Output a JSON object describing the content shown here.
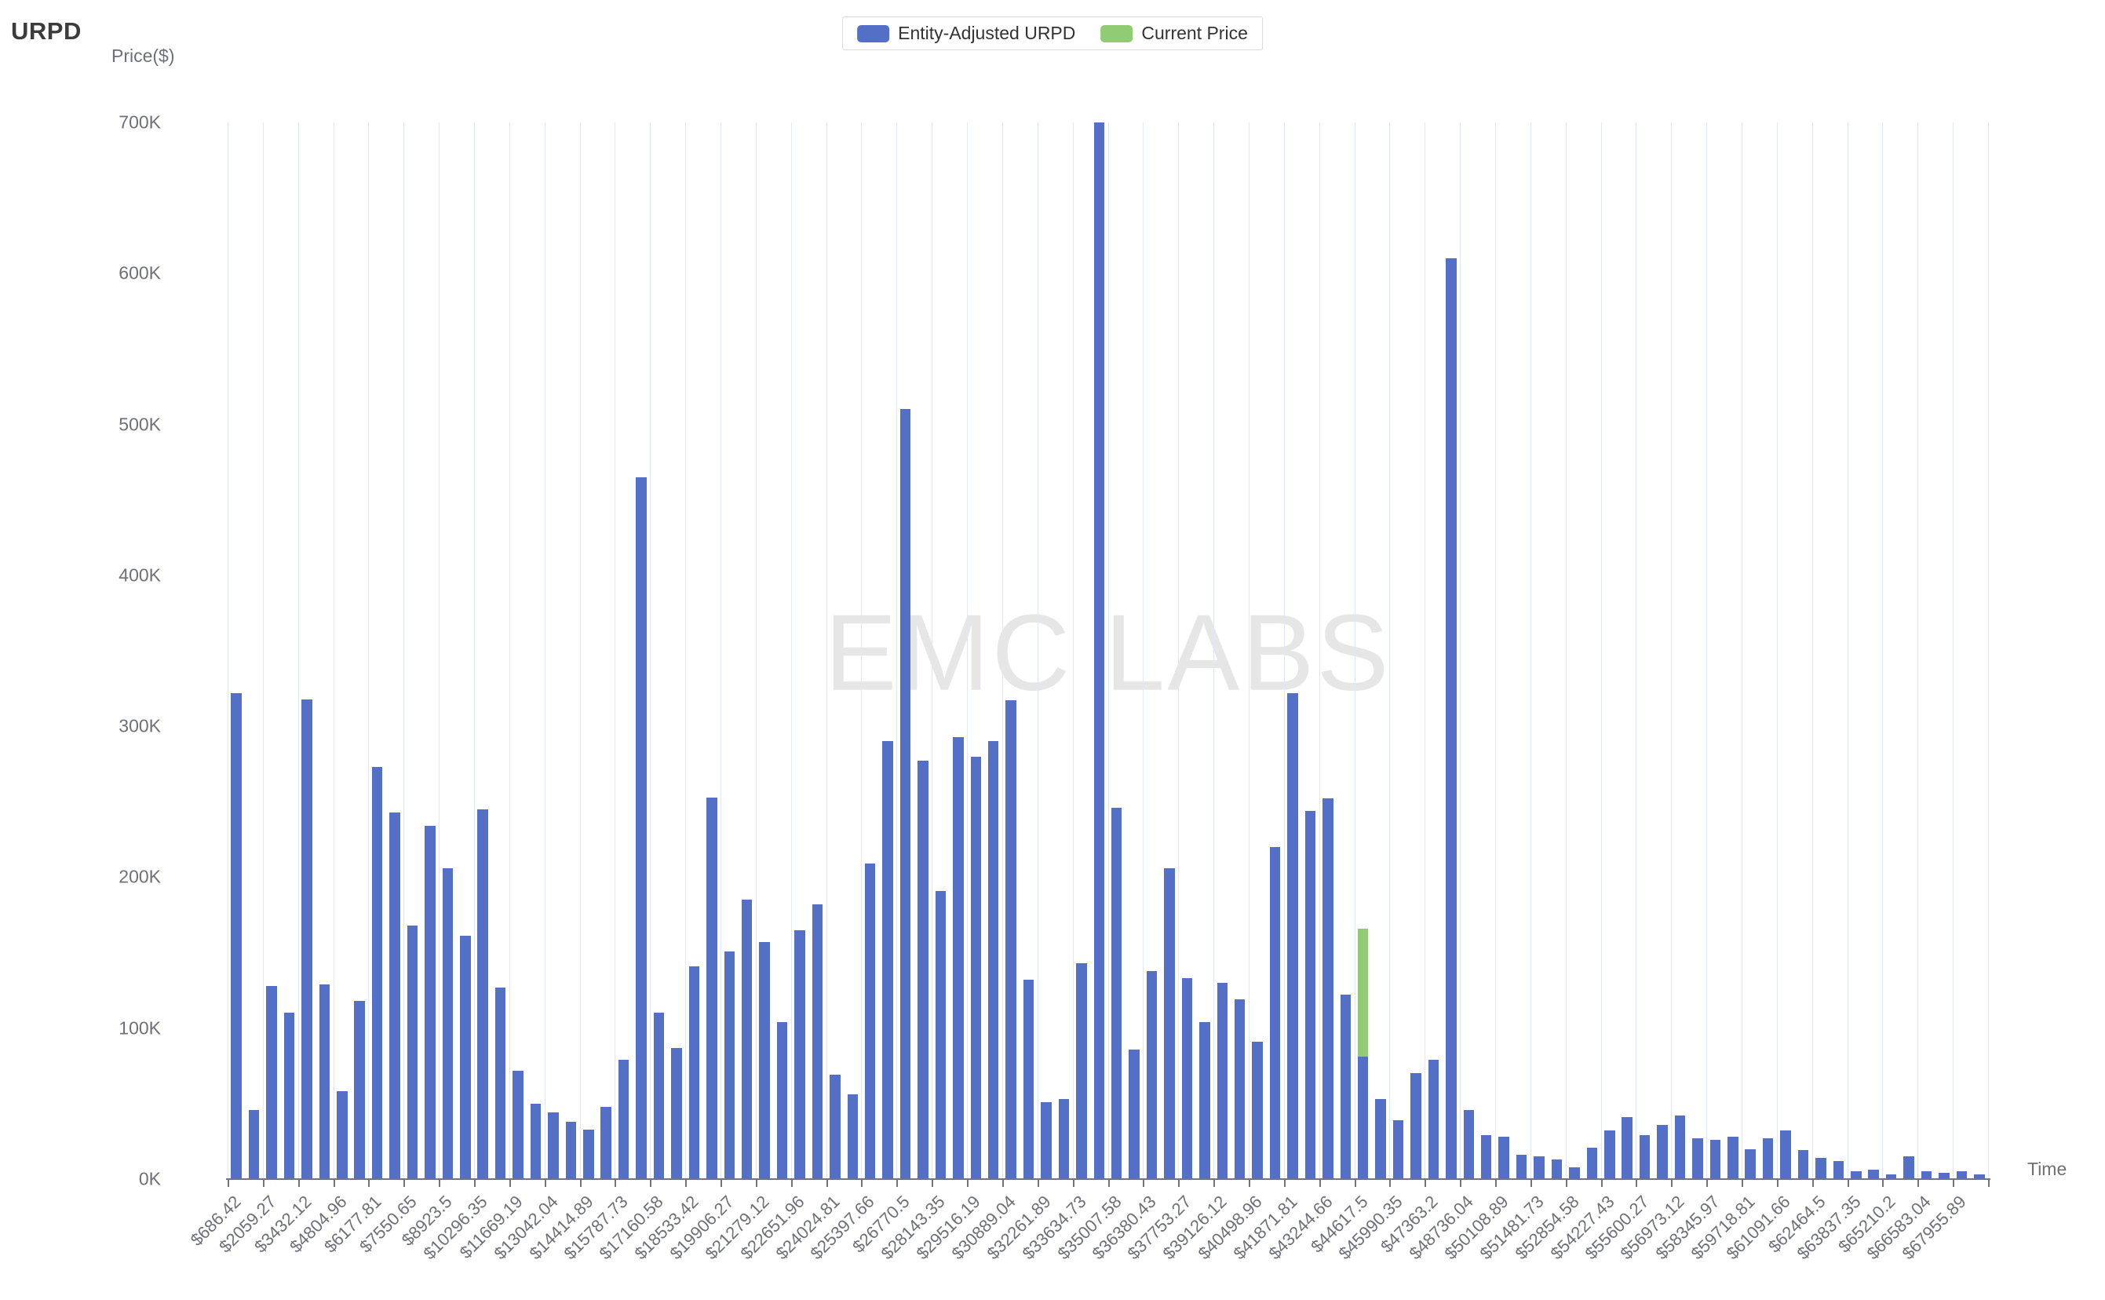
{
  "title": "URPD",
  "watermark": "EMC LABS",
  "legend": [
    {
      "label": "Entity-Adjusted URPD",
      "color": "#5470c6"
    },
    {
      "label": "Current Price",
      "color": "#91cc75"
    }
  ],
  "y_axis": {
    "title": "Price($)",
    "ticks": [
      "0K",
      "100K",
      "200K",
      "300K",
      "400K",
      "500K",
      "600K",
      "700K"
    ]
  },
  "x_axis": {
    "title": "Time"
  },
  "colors": {
    "bar": "#5470c6",
    "current_price": "#91cc75",
    "axis": "#71757e",
    "axis_text": "#6E7079",
    "gridline": "#e2e7f2",
    "watermark": "#e6e6e6",
    "legend_text": "#333333"
  },
  "chart_data": {
    "type": "bar",
    "title": "URPD",
    "xlabel": "Time",
    "ylabel": "Price($)",
    "ylim": [
      0,
      700
    ],
    "y_unit": "K",
    "y_ticks": [
      "0K",
      "100K",
      "200K",
      "300K",
      "400K",
      "500K",
      "600K",
      "700K"
    ],
    "grid": "vertical-only",
    "legend_position": "top-center",
    "n_bars": 100,
    "label_every_n_bars": 2,
    "bin_width_usd": 686.42,
    "categories": [
      "$686.42",
      "$2059.27",
      "$3432.12",
      "$4804.96",
      "$6177.81",
      "$7550.65",
      "$8923.5",
      "$10296.35",
      "$11669.19",
      "$13042.04",
      "$14414.89",
      "$15787.73",
      "$17160.58",
      "$18533.42",
      "$19906.27",
      "$21279.12",
      "$22651.96",
      "$24024.81",
      "$25397.66",
      "$26770.5",
      "$28143.35",
      "$29516.19",
      "$30889.04",
      "$32261.89",
      "$33634.73",
      "$35007.58",
      "$36380.43",
      "$37753.27",
      "$39126.12",
      "$40498.96",
      "$41871.81",
      "$43244.66",
      "$44617.5",
      "$45990.35",
      "$47363.2",
      "$48736.04",
      "$50108.89",
      "$51481.73",
      "$52854.58",
      "$54227.43",
      "$55600.27",
      "$56973.12",
      "$58345.97",
      "$59718.81",
      "$61091.66",
      "$62464.5",
      "$63837.35",
      "$65210.2",
      "$66583.04",
      "$67955.89"
    ],
    "series": [
      {
        "name": "Entity-Adjusted URPD",
        "color": "#5470c6",
        "unit": "K",
        "values": [
          322,
          46,
          128,
          110,
          318,
          129,
          58,
          118,
          273,
          243,
          168,
          234,
          206,
          161,
          245,
          127,
          72,
          50,
          44,
          38,
          33,
          48,
          79,
          465,
          110,
          87,
          141,
          253,
          151,
          185,
          157,
          104,
          165,
          182,
          69,
          56,
          209,
          290,
          510,
          277,
          191,
          293,
          280,
          290,
          317,
          132,
          51,
          53,
          143,
          700,
          246,
          86,
          138,
          206,
          133,
          104,
          130,
          119,
          91,
          220,
          322,
          244,
          252,
          122,
          81,
          53,
          39,
          70,
          79,
          610,
          46,
          29,
          28,
          16,
          15,
          13,
          8,
          21,
          32,
          41,
          29,
          36,
          42,
          27,
          26,
          28,
          20,
          27,
          32,
          19,
          14,
          12,
          5,
          6,
          3,
          15,
          5,
          4,
          5,
          3
        ]
      },
      {
        "name": "Current Price",
        "color": "#91cc75",
        "unit": "K",
        "type": "stacked-segment",
        "bar_index": 64,
        "near_label": "$44617.5",
        "from": 81,
        "to": 166
      }
    ]
  }
}
